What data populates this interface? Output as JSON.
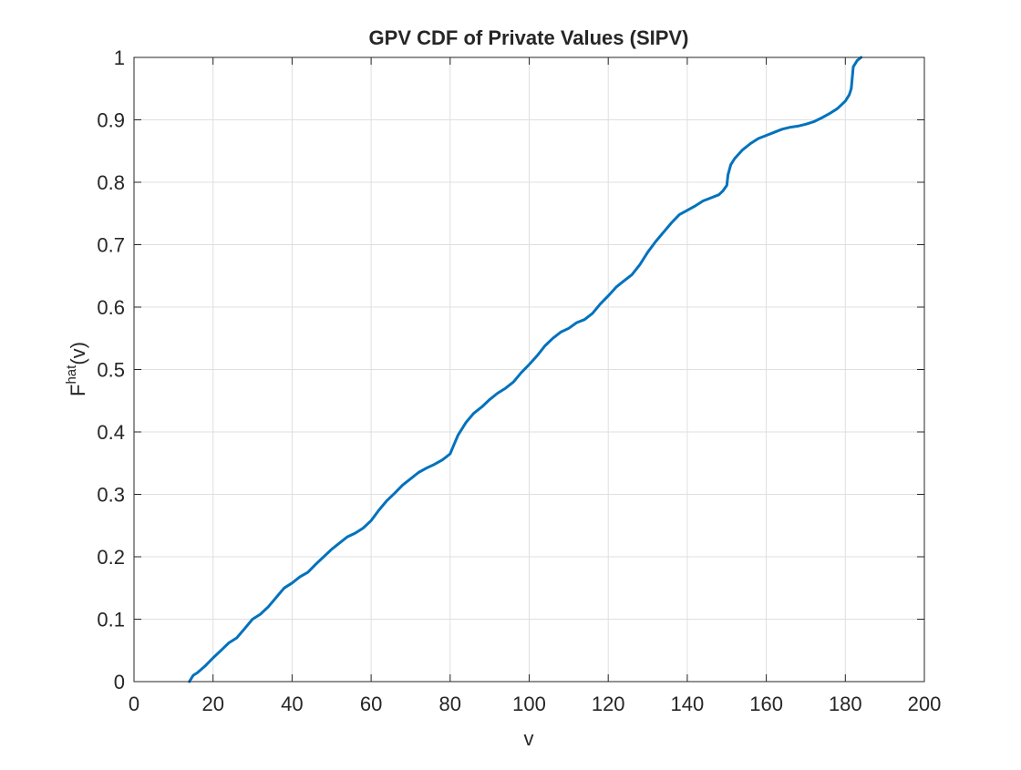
{
  "chart_data": {
    "type": "line",
    "title": "GPV CDF of Private Values (SIPV)",
    "xlabel": "v",
    "ylabel_main": "F",
    "ylabel_sup": "hat",
    "ylabel_arg": "(v)",
    "xlim": [
      0,
      200
    ],
    "ylim": [
      0,
      1
    ],
    "xticks": [
      0,
      20,
      40,
      60,
      80,
      100,
      120,
      140,
      160,
      180,
      200
    ],
    "yticks": [
      0,
      0.1,
      0.2,
      0.3,
      0.4,
      0.5,
      0.6,
      0.7,
      0.8,
      0.9,
      1
    ],
    "xtick_labels": [
      "0",
      "20",
      "40",
      "60",
      "80",
      "100",
      "120",
      "140",
      "160",
      "180",
      "200"
    ],
    "ytick_labels": [
      "0",
      "0.1",
      "0.2",
      "0.3",
      "0.4",
      "0.5",
      "0.6",
      "0.7",
      "0.8",
      "0.9",
      "1"
    ],
    "grid": true,
    "line_color": "#0072BD",
    "series": [
      {
        "x": [
          14,
          15,
          16,
          18,
          20,
          22,
          24,
          26,
          28,
          30,
          32,
          34,
          36,
          38,
          40,
          42,
          44,
          46,
          48,
          50,
          52,
          54,
          56,
          58,
          60,
          62,
          64,
          66,
          68,
          70,
          72,
          74,
          76,
          78,
          79,
          80,
          81,
          82,
          84,
          86,
          88,
          90,
          92,
          94,
          96,
          98,
          100,
          102,
          104,
          106,
          108,
          110,
          112,
          114,
          116,
          118,
          120,
          122,
          124,
          126,
          128,
          130,
          132,
          134,
          136,
          138,
          140,
          142,
          144,
          146,
          148,
          149,
          150,
          150.3,
          151,
          152,
          154,
          156,
          158,
          160,
          162,
          164,
          166,
          168,
          170,
          172,
          174,
          176,
          178,
          180,
          181,
          181.5,
          182,
          183,
          184
        ],
        "y": [
          0,
          0.01,
          0.014,
          0.025,
          0.038,
          0.05,
          0.062,
          0.07,
          0.085,
          0.1,
          0.108,
          0.12,
          0.135,
          0.15,
          0.158,
          0.168,
          0.175,
          0.188,
          0.2,
          0.212,
          0.222,
          0.232,
          0.238,
          0.246,
          0.258,
          0.275,
          0.29,
          0.302,
          0.315,
          0.325,
          0.335,
          0.342,
          0.348,
          0.355,
          0.36,
          0.365,
          0.38,
          0.395,
          0.415,
          0.43,
          0.44,
          0.452,
          0.462,
          0.47,
          0.48,
          0.495,
          0.508,
          0.522,
          0.538,
          0.55,
          0.56,
          0.566,
          0.575,
          0.58,
          0.59,
          0.605,
          0.618,
          0.632,
          0.642,
          0.652,
          0.668,
          0.688,
          0.705,
          0.72,
          0.735,
          0.748,
          0.755,
          0.762,
          0.77,
          0.775,
          0.78,
          0.786,
          0.795,
          0.812,
          0.828,
          0.838,
          0.852,
          0.862,
          0.87,
          0.875,
          0.88,
          0.885,
          0.888,
          0.89,
          0.893,
          0.897,
          0.903,
          0.91,
          0.918,
          0.93,
          0.94,
          0.95,
          0.985,
          0.995,
          1.0
        ]
      }
    ]
  }
}
